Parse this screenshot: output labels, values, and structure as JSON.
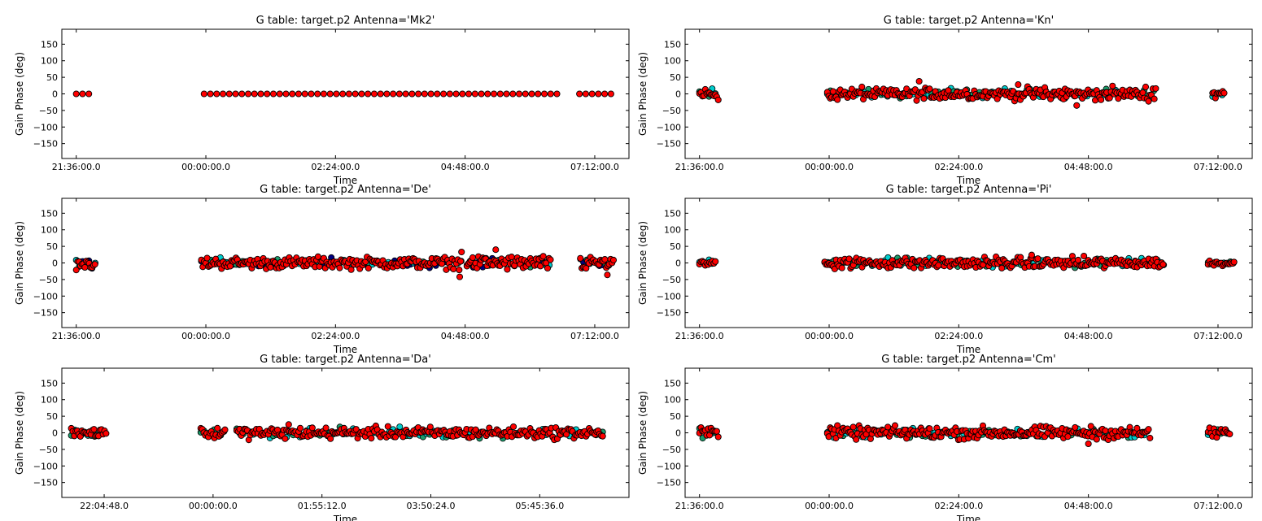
{
  "chart_data": [
    {
      "type": "scatter",
      "title": "G table: target.p2      Antenna='Mk2'",
      "xlabel": "Time",
      "ylabel": "Gain Phase (deg)",
      "xlim": [
        "21:20:00",
        "07:50:00"
      ],
      "ylim": [
        -195,
        195
      ],
      "y_ticks": [
        150,
        100,
        50,
        0,
        -50,
        -100,
        -150
      ],
      "x_ticks": [
        {
          "label": "21:36:00.0",
          "t": "21:36:00"
        },
        {
          "label": "00:00:00.0",
          "t": "00:00:00"
        },
        {
          "label": "02:24:00.0",
          "t": "02:24:00"
        },
        {
          "label": "04:48:00.0",
          "t": "04:48:00"
        },
        {
          "label": "07:12:00.0",
          "t": "07:12:00"
        }
      ],
      "segments": [
        {
          "start": "21:36:00",
          "end": "21:55:00",
          "phase_spread_deg": 0
        },
        {
          "start": "23:58:00",
          "end": "06:35:00",
          "phase_spread_deg": 0
        },
        {
          "start": "06:55:00",
          "end": "07:30:00",
          "phase_spread_deg": 0
        }
      ],
      "outliers": [],
      "colors": {
        "primary": "#ff0000",
        "secondary": [
          "#00cccc",
          "#1a9a6a"
        ]
      }
    },
    {
      "type": "scatter",
      "title": "G table: target.p2      Antenna='Kn'",
      "xlabel": "Time",
      "ylabel": "Gain Phase (deg)",
      "xlim": [
        "21:20:00",
        "07:50:00"
      ],
      "ylim": [
        -195,
        195
      ],
      "y_ticks": [
        150,
        100,
        50,
        0,
        -50,
        -100,
        -150
      ],
      "x_ticks": [
        {
          "label": "21:36:00.0",
          "t": "21:36:00"
        },
        {
          "label": "00:00:00.0",
          "t": "00:00:00"
        },
        {
          "label": "02:24:00.0",
          "t": "02:24:00"
        },
        {
          "label": "04:48:00.0",
          "t": "04:48:00"
        },
        {
          "label": "07:12:00.0",
          "t": "07:12:00"
        }
      ],
      "segments": [
        {
          "start": "21:36:00",
          "end": "21:57:00",
          "phase_spread_deg": 14
        },
        {
          "start": "23:58:00",
          "end": "06:04:00",
          "phase_spread_deg": 13
        },
        {
          "start": "07:06:00",
          "end": "07:20:00",
          "phase_spread_deg": 12
        }
      ],
      "outliers": [
        {
          "t": "01:40:00",
          "phase": 38
        },
        {
          "t": "04:35:00",
          "phase": -35
        },
        {
          "t": "03:30:00",
          "phase": 28
        }
      ],
      "colors": {
        "primary": "#ff0000",
        "secondary": [
          "#00cccc",
          "#1a9a6a"
        ]
      }
    },
    {
      "type": "scatter",
      "title": "G table: target.p2      Antenna='De'",
      "xlabel": "Time",
      "ylabel": "Gain Phase (deg)",
      "xlim": [
        "21:20:00",
        "07:50:00"
      ],
      "ylim": [
        -195,
        195
      ],
      "y_ticks": [
        150,
        100,
        50,
        0,
        -50,
        -100,
        -150
      ],
      "x_ticks": [
        {
          "label": "21:36:00.0",
          "t": "21:36:00"
        },
        {
          "label": "00:00:00.0",
          "t": "00:00:00"
        },
        {
          "label": "02:24:00.0",
          "t": "02:24:00"
        },
        {
          "label": "04:48:00.0",
          "t": "04:48:00"
        },
        {
          "label": "07:12:00.0",
          "t": "07:12:00"
        }
      ],
      "segments": [
        {
          "start": "21:36:00",
          "end": "21:58:00",
          "phase_spread_deg": 12
        },
        {
          "start": "23:55:00",
          "end": "04:44:00",
          "phase_spread_deg": 12
        },
        {
          "start": "04:50:00",
          "end": "06:23:00",
          "phase_spread_deg": 15
        },
        {
          "start": "06:56:00",
          "end": "07:34:00",
          "phase_spread_deg": 14
        }
      ],
      "outliers": [
        {
          "t": "04:42:00",
          "phase": -42
        },
        {
          "t": "05:22:00",
          "phase": 40
        },
        {
          "t": "07:26:00",
          "phase": -36
        },
        {
          "t": "04:44:00",
          "phase": 33
        }
      ],
      "colors": {
        "primary": "#ff0000",
        "secondary": [
          "#00cccc",
          "#1a9a6a",
          "#000080"
        ]
      }
    },
    {
      "type": "scatter",
      "title": "G table: target.p2      Antenna='Pi'",
      "xlabel": "Time",
      "ylabel": "Gain Phase (deg)",
      "xlim": [
        "21:20:00",
        "07:50:00"
      ],
      "ylim": [
        -195,
        195
      ],
      "y_ticks": [
        150,
        100,
        50,
        0,
        -50,
        -100,
        -150
      ],
      "x_ticks": [
        {
          "label": "21:36:00.0",
          "t": "21:36:00"
        },
        {
          "label": "00:00:00.0",
          "t": "00:00:00"
        },
        {
          "label": "02:24:00.0",
          "t": "02:24:00"
        },
        {
          "label": "04:48:00.0",
          "t": "04:48:00"
        },
        {
          "label": "07:12:00.0",
          "t": "07:12:00"
        }
      ],
      "segments": [
        {
          "start": "21:36:00",
          "end": "21:55:00",
          "phase_spread_deg": 8
        },
        {
          "start": "23:55:00",
          "end": "06:12:00",
          "phase_spread_deg": 12
        },
        {
          "start": "07:01:00",
          "end": "07:30:00",
          "phase_spread_deg": 6
        }
      ],
      "outliers": [
        {
          "t": "03:45:00",
          "phase": 24
        }
      ],
      "colors": {
        "primary": "#ff0000",
        "secondary": [
          "#00cccc",
          "#1a9a6a"
        ]
      }
    },
    {
      "type": "scatter",
      "title": "G table: target.p2      Antenna='Da'",
      "xlabel": "Time",
      "ylabel": "Gain Phase (deg)",
      "xlim": [
        "21:20:00",
        "07:20:00"
      ],
      "ylim": [
        -195,
        195
      ],
      "y_ticks": [
        150,
        100,
        50,
        0,
        -50,
        -100,
        -150
      ],
      "x_ticks": [
        {
          "label": "22:04:48.0",
          "t": "22:04:48"
        },
        {
          "label": "00:00:00.0",
          "t": "00:00:00"
        },
        {
          "label": "01:55:12.0",
          "t": "01:55:12"
        },
        {
          "label": "03:50:24.0",
          "t": "03:50:24"
        },
        {
          "label": "05:45:36.0",
          "t": "05:45:36"
        }
      ],
      "segments": [
        {
          "start": "21:30:00",
          "end": "22:08:00",
          "phase_spread_deg": 8
        },
        {
          "start": "23:47:00",
          "end": "00:13:00",
          "phase_spread_deg": 10
        },
        {
          "start": "00:25:00",
          "end": "06:53:00",
          "phase_spread_deg": 12
        }
      ],
      "outliers": [
        {
          "t": "01:20:00",
          "phase": 25
        }
      ],
      "colors": {
        "primary": "#ff0000",
        "secondary": [
          "#00cccc",
          "#1a9a6a"
        ]
      }
    },
    {
      "type": "scatter",
      "title": "G table: target.p2      Antenna='Cm'",
      "xlabel": "Time",
      "ylabel": "Gain Phase (deg)",
      "xlim": [
        "21:20:00",
        "07:50:00"
      ],
      "ylim": [
        -195,
        195
      ],
      "y_ticks": [
        150,
        100,
        50,
        0,
        -50,
        -100,
        -150
      ],
      "x_ticks": [
        {
          "label": "21:36:00.0",
          "t": "21:36:00"
        },
        {
          "label": "00:00:00.0",
          "t": "00:00:00"
        },
        {
          "label": "02:24:00.0",
          "t": "02:24:00"
        },
        {
          "label": "04:48:00.0",
          "t": "04:48:00"
        },
        {
          "label": "07:12:00.0",
          "t": "07:12:00"
        }
      ],
      "segments": [
        {
          "start": "21:36:00",
          "end": "21:57:00",
          "phase_spread_deg": 12
        },
        {
          "start": "23:58:00",
          "end": "05:57:00",
          "phase_spread_deg": 13
        },
        {
          "start": "07:01:00",
          "end": "07:25:00",
          "phase_spread_deg": 12
        }
      ],
      "outliers": [
        {
          "t": "04:48:00",
          "phase": -33
        }
      ],
      "colors": {
        "primary": "#ff0000",
        "secondary": [
          "#00cccc",
          "#1a9a6a"
        ]
      }
    }
  ]
}
